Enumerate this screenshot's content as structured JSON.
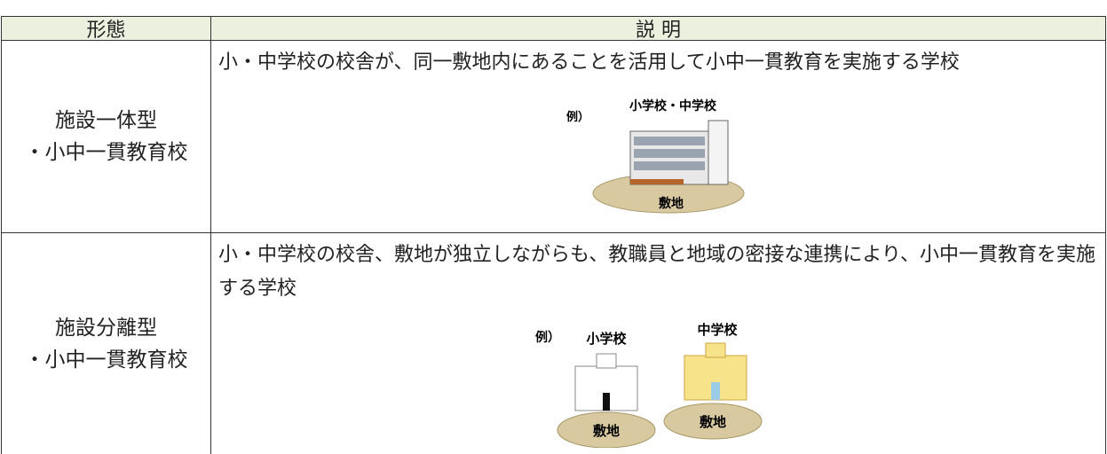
{
  "header": {
    "type": "形態",
    "description": "説 明"
  },
  "rows": [
    {
      "type_lines": [
        "施設一体型",
        "・小中一貫教育校"
      ],
      "description": "小・中学校の校舎が、同一敷地内にあることを活用して小中一貫教育を実施する学校",
      "example": {
        "prefix": "例）",
        "building": "小学校・中学校",
        "site": "敷地"
      }
    },
    {
      "type_lines": [
        "施設分離型",
        "・小中一貫教育校"
      ],
      "description": "小・中学校の校舎、敷地が独立しながらも、教職員と地域の密接な連携により、小中一貫教育を実施する学校",
      "example": {
        "prefix": "例）",
        "building_a": "小学校",
        "building_b": "中学校",
        "site_a": "敷地",
        "site_b": "敷地"
      }
    }
  ]
}
